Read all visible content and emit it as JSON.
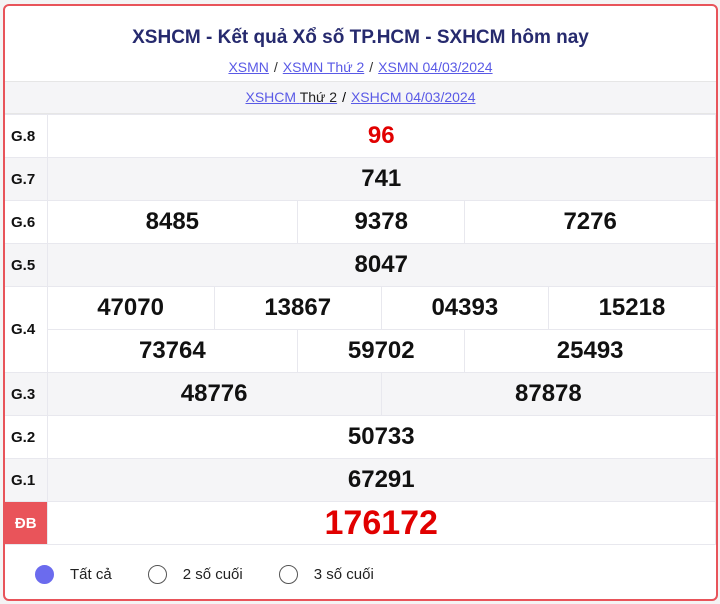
{
  "header": {
    "title": "XSHCM - Kết quả Xổ số TP.HCM - SXHCM hôm nay",
    "breadcrumbs": [
      "XSMN",
      "XSMN Thứ 2",
      "XSMN 04/03/2024"
    ]
  },
  "subnav": {
    "link1_a": "XSHCM",
    "link1_b": "Thứ 2",
    "link2": "XSHCM 04/03/2024"
  },
  "prizes": {
    "g8": {
      "label": "G.8",
      "values": [
        "96"
      ]
    },
    "g7": {
      "label": "G.7",
      "values": [
        "741"
      ]
    },
    "g6": {
      "label": "G.6",
      "values": [
        "8485",
        "9378",
        "7276"
      ]
    },
    "g5": {
      "label": "G.5",
      "values": [
        "8047"
      ]
    },
    "g4": {
      "label": "G.4",
      "values": [
        "47070",
        "13867",
        "04393",
        "15218",
        "73764",
        "59702",
        "25493"
      ]
    },
    "g3": {
      "label": "G.3",
      "values": [
        "48776",
        "87878"
      ]
    },
    "g2": {
      "label": "G.2",
      "values": [
        "50733"
      ]
    },
    "g1": {
      "label": "G.1",
      "values": [
        "67291"
      ]
    },
    "db": {
      "label": "ĐB",
      "values": [
        "176172"
      ]
    }
  },
  "filters": {
    "selected": "Tất cả",
    "options": [
      "Tất cả",
      "2 số cuối",
      "3 số cuối"
    ]
  },
  "colors": {
    "accent": "#e9545a",
    "special": "#e10000",
    "title": "#262a6e",
    "radio": "#6b6bee"
  }
}
